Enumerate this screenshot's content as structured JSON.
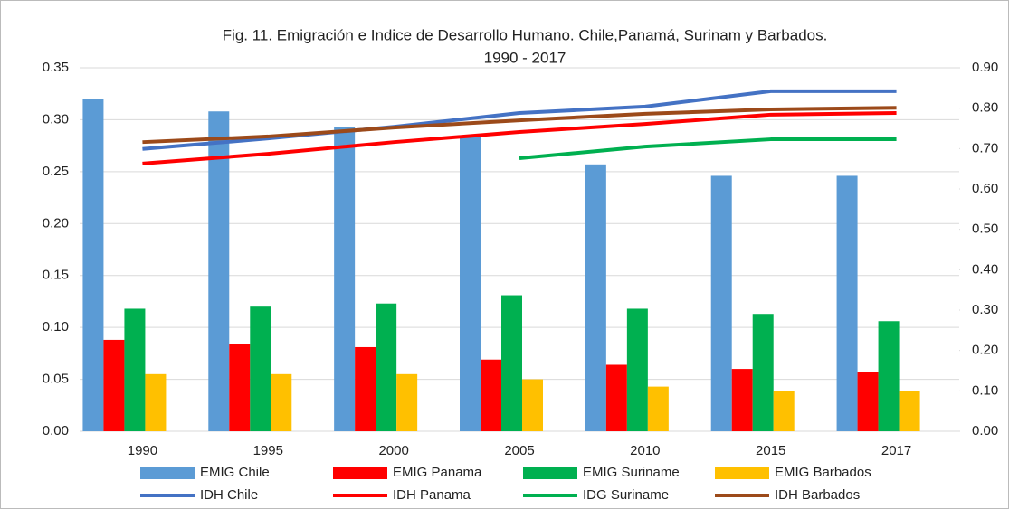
{
  "chart_data": {
    "type": "bar",
    "title": [
      "Fig. 11. Emigración e Indice de Desarrollo Humano. Chile,Panamá, Surinam y Barbados.",
      "1990 - 2017"
    ],
    "categories": [
      "1990",
      "1995",
      "2000",
      "2005",
      "2010",
      "2015",
      "2017"
    ],
    "ylim": [
      0,
      0.35
    ],
    "yticks": [
      {
        "value": 0,
        "label": "0.00"
      },
      {
        "value": 0.05,
        "label": "0.05"
      },
      {
        "value": 0.1,
        "label": "0.10"
      },
      {
        "value": 0.15,
        "label": "0.15"
      },
      {
        "value": 0.2,
        "label": "0.20"
      },
      {
        "value": 0.25,
        "label": "0.25"
      },
      {
        "value": 0.3,
        "label": "0.30"
      },
      {
        "value": 0.35,
        "label": "0.35"
      }
    ],
    "y2lim": [
      0,
      0.9
    ],
    "y2ticks": [
      {
        "value": 0,
        "label": "0.00"
      },
      {
        "value": 0.1,
        "label": "0.10"
      },
      {
        "value": 0.2,
        "label": "0.20"
      },
      {
        "value": 0.3,
        "label": "0.30"
      },
      {
        "value": 0.4,
        "label": "0.40"
      },
      {
        "value": 0.5,
        "label": "0.50"
      },
      {
        "value": 0.6,
        "label": "0.60"
      },
      {
        "value": 0.7,
        "label": "0.70"
      },
      {
        "value": 0.8,
        "label": "0.80"
      },
      {
        "value": 0.9,
        "label": "0.90"
      }
    ],
    "grid": true,
    "legend": "bottom",
    "series": [
      {
        "name": "EMIG Chile",
        "type": "bar",
        "color": "#5b9bd5",
        "values": [
          0.32,
          0.308,
          0.293,
          0.283,
          0.257,
          0.246,
          0.246
        ]
      },
      {
        "name": "EMIG Panama",
        "type": "bar",
        "color": "#ff0000",
        "values": [
          0.088,
          0.084,
          0.081,
          0.069,
          0.064,
          0.06,
          0.057
        ]
      },
      {
        "name": "EMIG  Suriname",
        "type": "bar",
        "color": "#00b050",
        "values": [
          0.118,
          0.12,
          0.123,
          0.131,
          0.118,
          0.113,
          0.106
        ]
      },
      {
        "name": "EMIG Barbados",
        "type": "bar",
        "color": "#ffc000",
        "values": [
          0.055,
          0.055,
          0.055,
          0.05,
          0.043,
          0.039,
          0.039
        ]
      },
      {
        "name": "IDH Chile",
        "type": "line",
        "axis": "y2",
        "color": "#4472c4",
        "values": [
          0.699,
          0.725,
          0.754,
          0.788,
          0.804,
          0.842,
          0.842
        ]
      },
      {
        "name": "IDH Panama",
        "type": "line",
        "axis": "y2",
        "color": "#ff0000",
        "values": [
          0.663,
          0.687,
          0.716,
          0.741,
          0.761,
          0.784,
          0.788
        ]
      },
      {
        "name": "IDG Suriname",
        "type": "line",
        "axis": "y2",
        "color": "#00b050",
        "values": [
          null,
          null,
          null,
          0.676,
          0.705,
          0.723,
          0.723
        ]
      },
      {
        "name": "IDH Barbados",
        "type": "line",
        "axis": "y2",
        "color": "#9c4a1a",
        "values": [
          0.716,
          0.73,
          0.752,
          0.77,
          0.786,
          0.797,
          0.801
        ]
      }
    ]
  }
}
